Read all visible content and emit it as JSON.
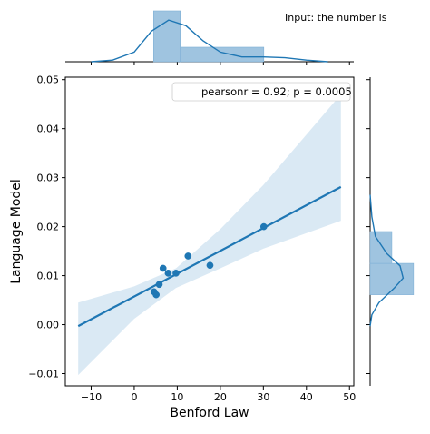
{
  "chart_data": {
    "type": "scatter",
    "kind": "jointplot with regression line and marginal histograms/KDE",
    "annotation": "Input: the number is",
    "xlabel": "Benford Law",
    "ylabel": "Language Model",
    "xlim": [
      -16,
      51
    ],
    "ylim": [
      -0.0125,
      0.0505
    ],
    "x_ticks": [
      -10,
      0,
      10,
      20,
      30,
      40,
      50
    ],
    "x_tick_labels": [
      "−10",
      "0",
      "10",
      "20",
      "30",
      "40",
      "50"
    ],
    "y_ticks": [
      -0.01,
      0.0,
      0.01,
      0.02,
      0.03,
      0.04,
      0.05
    ],
    "y_tick_labels": [
      "−0.01",
      "0.00",
      "0.01",
      "0.02",
      "0.03",
      "0.04",
      "0.05"
    ],
    "points": [
      {
        "x": 4.6,
        "y": 0.0067
      },
      {
        "x": 5.1,
        "y": 0.0061
      },
      {
        "x": 5.8,
        "y": 0.0082
      },
      {
        "x": 6.7,
        "y": 0.0115
      },
      {
        "x": 7.9,
        "y": 0.0105
      },
      {
        "x": 9.7,
        "y": 0.0105
      },
      {
        "x": 12.5,
        "y": 0.014
      },
      {
        "x": 17.6,
        "y": 0.0121
      },
      {
        "x": 30.1,
        "y": 0.02
      }
    ],
    "regression": {
      "x_range": [
        -13,
        48
      ],
      "y_start": -0.0003,
      "y_end": 0.0281
    },
    "confidence_band": [
      {
        "x": -13,
        "lo": -0.0103,
        "hi": 0.0045
      },
      {
        "x": 0,
        "lo": 0.0012,
        "hi": 0.0078
      },
      {
        "x": 9.7,
        "lo": 0.0075,
        "hi": 0.0115
      },
      {
        "x": 20,
        "lo": 0.0115,
        "hi": 0.0195
      },
      {
        "x": 30,
        "lo": 0.0155,
        "hi": 0.0285
      },
      {
        "x": 48,
        "lo": 0.0212,
        "hi": 0.047
      }
    ],
    "legend": {
      "text": "pearsonr = 0.92; p = 0.0005",
      "loc": "upper right"
    },
    "marginal_x_hist": {
      "bins": [
        [
          4.5,
          10.7
        ],
        [
          10.7,
          30.1
        ]
      ],
      "counts": [
        7,
        2
      ]
    },
    "marginal_y_hist": {
      "bins": [
        [
          0.0061,
          0.0125
        ],
        [
          0.0125,
          0.019
        ]
      ],
      "counts": [
        6,
        3
      ]
    },
    "marginal_x_kde": [
      [
        -10,
        0.0
      ],
      [
        -5,
        0.02
      ],
      [
        0,
        0.12
      ],
      [
        4,
        0.38
      ],
      [
        8,
        0.52
      ],
      [
        12,
        0.45
      ],
      [
        16,
        0.26
      ],
      [
        20,
        0.12
      ],
      [
        25,
        0.06
      ],
      [
        30,
        0.06
      ],
      [
        35,
        0.05
      ],
      [
        40,
        0.02
      ],
      [
        45,
        0.0
      ]
    ],
    "marginal_y_kde": [
      [
        -0.0003,
        0.0
      ],
      [
        0.002,
        0.04
      ],
      [
        0.0045,
        0.2
      ],
      [
        0.0075,
        0.55
      ],
      [
        0.0095,
        0.75
      ],
      [
        0.012,
        0.68
      ],
      [
        0.0145,
        0.38
      ],
      [
        0.018,
        0.12
      ],
      [
        0.022,
        0.04
      ],
      [
        0.0265,
        0.0
      ]
    ],
    "colors": {
      "points": "#1f77b4",
      "line": "#1f77b4",
      "band": "#d6e7f3",
      "hist": "#9fc4e0",
      "hist_stroke": "#7fb0d6"
    }
  }
}
